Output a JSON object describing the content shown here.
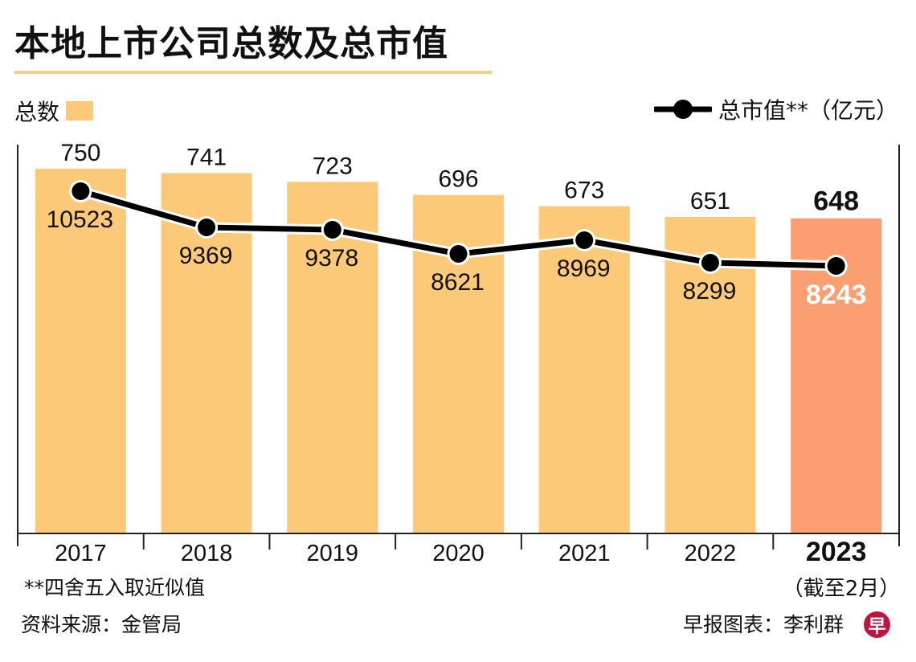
{
  "header": {
    "title": "本地上市公司总数及总市值"
  },
  "legend": {
    "bar_label": "总数",
    "line_label": "总市值**（亿元）"
  },
  "colors": {
    "bar": "#fbc978",
    "bar_highlight": "#fb9e72",
    "line": "#000000",
    "title_rule": "#f5cf86",
    "logo": "#c4123f"
  },
  "footer": {
    "footnote": "**四舍五入取近似值",
    "source": "资料来源：金管局",
    "credit": "早报图表：李利群",
    "as_of": "（截至2月）",
    "logo_glyph": "早"
  },
  "chart_data": {
    "type": "bar",
    "title": "本地上市公司总数及总市值",
    "xlabel": "",
    "ylabel": "",
    "categories": [
      "2017",
      "2018",
      "2019",
      "2020",
      "2021",
      "2022",
      "2023"
    ],
    "highlight_category": "2023",
    "series": [
      {
        "name": "总数",
        "type": "bar",
        "values": [
          750,
          741,
          723,
          696,
          673,
          651,
          648
        ]
      },
      {
        "name": "总市值**（亿元）",
        "type": "line",
        "values": [
          10523,
          9369,
          9378,
          8621,
          8969,
          8299,
          8243
        ]
      }
    ],
    "bar_ylim": [
      0,
      750
    ],
    "line_ylim": [
      8243,
      10523
    ],
    "grid": false,
    "legend_placement": "top"
  }
}
